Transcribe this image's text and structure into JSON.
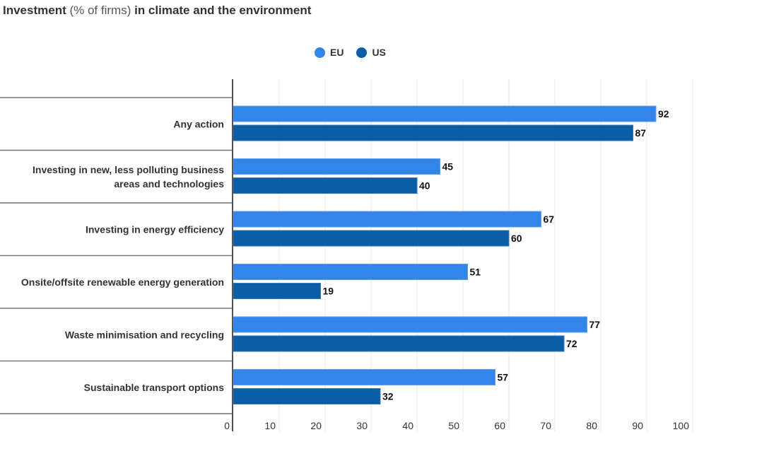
{
  "chart_data": {
    "type": "bar",
    "orientation": "horizontal",
    "title": "Investment (% of firms) in climate and the environment",
    "title_parts": {
      "bold1": "Investment",
      "normal": " (% of firms) ",
      "bold2": "in climate and the environment"
    },
    "categories": [
      [
        "Any action"
      ],
      [
        "Investing in new, less polluting business",
        "areas and technologies"
      ],
      [
        "Investing in energy efficiency"
      ],
      [
        "Onsite/offsite renewable energy generation"
      ],
      [
        "Waste minimisation and recycling"
      ],
      [
        "Sustainable transport options"
      ]
    ],
    "series": [
      {
        "name": "EU",
        "color": "#3385e9",
        "values": [
          92,
          45,
          67,
          51,
          77,
          57
        ]
      },
      {
        "name": "US",
        "color": "#0b5ea6",
        "values": [
          87,
          40,
          60,
          19,
          72,
          32
        ]
      }
    ],
    "xlim": [
      0,
      100
    ],
    "xticks": [
      0,
      10,
      20,
      30,
      40,
      50,
      60,
      70,
      80,
      90,
      100
    ],
    "xlabel": "",
    "ylabel": "",
    "grid": true,
    "legend_position": "top-center",
    "data_labels": true
  }
}
